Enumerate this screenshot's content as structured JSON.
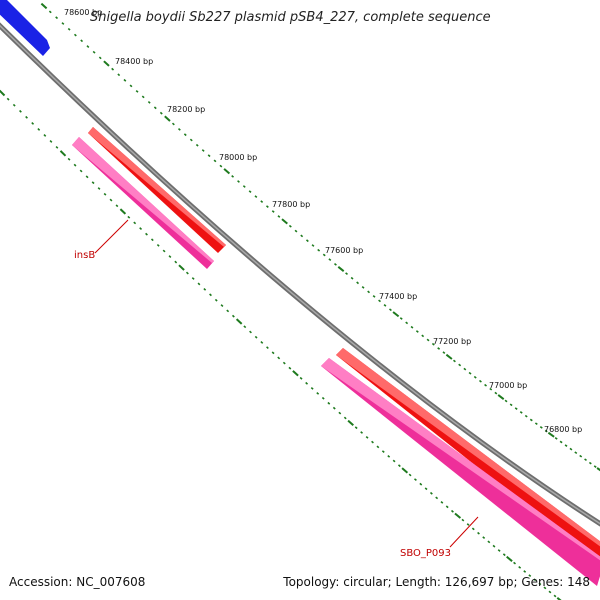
{
  "map": {
    "title": "Shigella boydii Sb227 plasmid pSB4_227, complete sequence",
    "accession_text": "Accession: NC_007608",
    "summary_text": "Topology: circular; Length: 126,697 bp; Genes: 148",
    "colors": {
      "backbone": "#8a8a8a",
      "tick": "#1e7a1e",
      "forward_gene": "#ee1111",
      "reverse_gene": "#ee2f9a",
      "other_gene": "#1a22e6",
      "gene_label": "#c00000"
    },
    "ticks": [
      {
        "label": "78600 bp"
      },
      {
        "label": "78400 bp"
      },
      {
        "label": "78200 bp"
      },
      {
        "label": "78000 bp"
      },
      {
        "label": "77800 bp"
      },
      {
        "label": "77600 bp"
      },
      {
        "label": "77400 bp"
      },
      {
        "label": "77200 bp"
      },
      {
        "label": "77000 bp"
      },
      {
        "label": "76800 bp"
      }
    ],
    "gene_labels": [
      {
        "label": "insB"
      },
      {
        "label": "SBO_P093"
      }
    ]
  }
}
